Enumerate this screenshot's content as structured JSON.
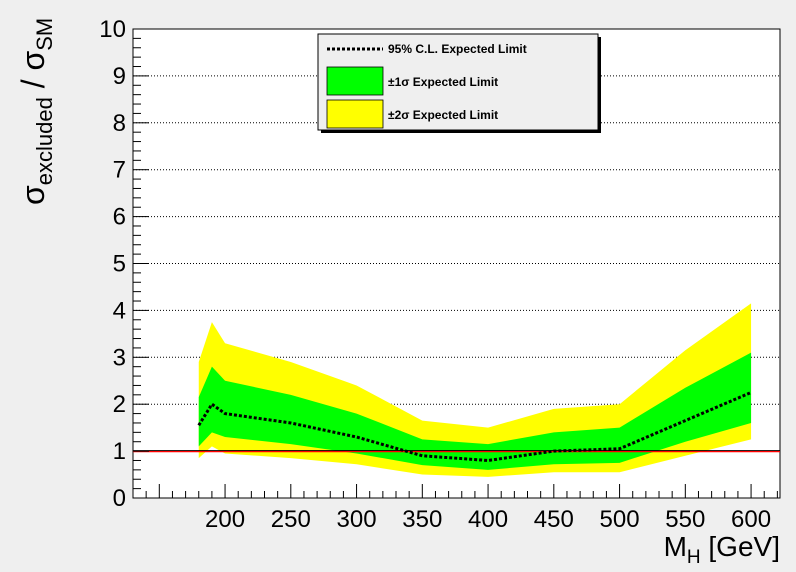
{
  "chart_data": {
    "type": "area",
    "xlabel_main": "M",
    "xlabel_sub": "H",
    "xlabel_unit": " [GeV]",
    "ylabel_main": "σ",
    "ylabel_sub1": "excluded",
    "ylabel_sep": " / σ",
    "ylabel_sub2": "SM",
    "xlim": [
      130,
      622
    ],
    "ylim": [
      0,
      10
    ],
    "xticks": [
      200,
      250,
      300,
      350,
      400,
      450,
      500,
      550,
      600
    ],
    "yticks": [
      0,
      1,
      2,
      3,
      4,
      5,
      6,
      7,
      8,
      9,
      10
    ],
    "y_grid": true,
    "reference_line": {
      "y": 1,
      "color": "#ff0000"
    },
    "x": [
      180,
      190,
      200,
      250,
      300,
      350,
      400,
      450,
      500,
      550,
      600
    ],
    "series": [
      {
        "name": "95% C.L. Expected Limit",
        "style": "dotted",
        "color": "#000000",
        "values": [
          1.55,
          2.0,
          1.8,
          1.6,
          1.3,
          0.9,
          0.8,
          1.0,
          1.05,
          1.65,
          2.25
        ]
      },
      {
        "name": "±1σ Expected Limit",
        "color": "#00ff00",
        "upper": [
          2.15,
          2.8,
          2.5,
          2.2,
          1.8,
          1.25,
          1.15,
          1.4,
          1.5,
          2.35,
          3.1
        ],
        "lower": [
          1.1,
          1.4,
          1.3,
          1.15,
          0.95,
          0.7,
          0.6,
          0.72,
          0.75,
          1.2,
          1.6
        ]
      },
      {
        "name": "±2σ Expected Limit",
        "color": "#ffff00",
        "upper": [
          2.9,
          3.75,
          3.3,
          2.9,
          2.4,
          1.65,
          1.5,
          1.9,
          2.0,
          3.15,
          4.15
        ],
        "lower": [
          0.85,
          1.1,
          0.95,
          0.85,
          0.72,
          0.5,
          0.45,
          0.55,
          0.55,
          0.9,
          1.25
        ]
      }
    ],
    "legend_position": "top-center"
  }
}
